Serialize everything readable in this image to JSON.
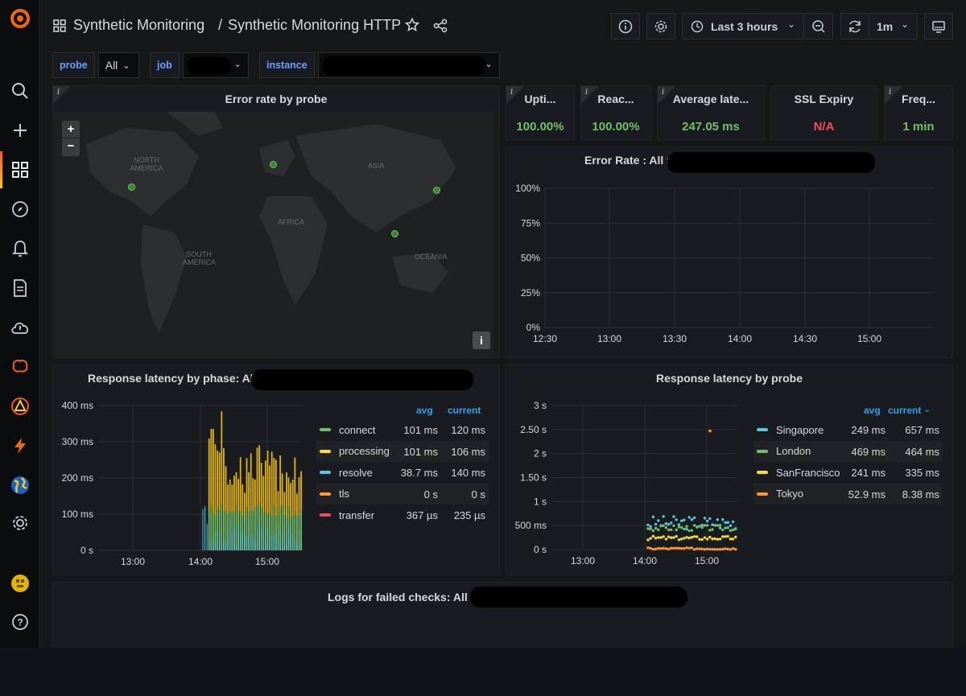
{
  "breadcrumb": {
    "folder": "Synthetic Monitoring",
    "separator": "/",
    "dashboard": "Synthetic Monitoring HTTP"
  },
  "toolbar": {
    "time_range": "Last 3 hours",
    "refresh_interval": "1m"
  },
  "variables": [
    {
      "label": "probe",
      "value": "All"
    },
    {
      "label": "job",
      "value": ""
    },
    {
      "label": "instance",
      "value": ""
    }
  ],
  "map_panel": {
    "title": "Error rate by probe",
    "zoom_in": "+",
    "zoom_out": "−",
    "info": "i",
    "labels": [
      "NORTH AMERICA",
      "ASIA",
      "AFRICA",
      "SOUTH AMERICA",
      "OCEANIA"
    ]
  },
  "stats": [
    {
      "title": "Upti...",
      "value": "100.00%",
      "color": "#73bf69"
    },
    {
      "title": "Reac...",
      "value": "100.00%",
      "color": "#73bf69"
    },
    {
      "title": "Average late...",
      "value": "247.05 ms",
      "color": "#73bf69"
    },
    {
      "title": "SSL Expiry",
      "value": "N/A",
      "color": "#f2495c"
    },
    {
      "title": "Freq...",
      "value": "1 min",
      "color": "#73bf69"
    }
  ],
  "error_rate_panel": {
    "title": "Error Rate : All =",
    "y_ticks": [
      "100%",
      "75%",
      "50%",
      "25%",
      "0%"
    ],
    "x_ticks": [
      "12:30",
      "13:00",
      "13:30",
      "14:00",
      "14:30",
      "15:00"
    ]
  },
  "phase_panel": {
    "title": "Response latency by phase: All =",
    "y_ticks": [
      "400 ms",
      "300 ms",
      "200 ms",
      "100 ms",
      "0 s"
    ],
    "x_ticks": [
      "13:00",
      "14:00",
      "15:00"
    ],
    "legend_header": {
      "avg": "avg",
      "current": "current"
    },
    "legend": [
      {
        "name": "connect",
        "avg": "101 ms",
        "current": "120 ms",
        "color": "#73bf69"
      },
      {
        "name": "processing",
        "avg": "101 ms",
        "current": "106 ms",
        "color": "#fade2a"
      },
      {
        "name": "resolve",
        "avg": "38.7 ms",
        "current": "140 ms",
        "color": "#5ac7db"
      },
      {
        "name": "tls",
        "avg": "0 s",
        "current": "0 s",
        "color": "#ff9830"
      },
      {
        "name": "transfer",
        "avg": "367 µs",
        "current": "235 µs",
        "color": "#f2495c"
      }
    ]
  },
  "probe_panel": {
    "title": "Response latency by probe",
    "y_ticks": [
      "3 s",
      "2.50 s",
      "2 s",
      "1.50 s",
      "1 s",
      "500 ms",
      "0 s"
    ],
    "x_ticks": [
      "13:00",
      "14:00",
      "15:00"
    ],
    "legend_header": {
      "avg": "avg",
      "current": "current"
    },
    "legend": [
      {
        "name": "Singapore",
        "avg": "249 ms",
        "current": "657 ms",
        "color": "#5ac7db"
      },
      {
        "name": "London",
        "avg": "469 ms",
        "current": "464 ms",
        "color": "#73bf69"
      },
      {
        "name": "SanFrancisco",
        "avg": "241 ms",
        "current": "335 ms",
        "color": "#fade2a"
      },
      {
        "name": "Tokyo",
        "avg": "52.9 ms",
        "current": "8.38 ms",
        "color": "#ff9830"
      }
    ]
  },
  "logs_panel": {
    "title": "Logs for failed checks: All ="
  },
  "colors": {
    "accent": "#6e9fff",
    "ok": "#73bf69",
    "bad": "#f2495c",
    "legend_header": "#33a2e5"
  }
}
